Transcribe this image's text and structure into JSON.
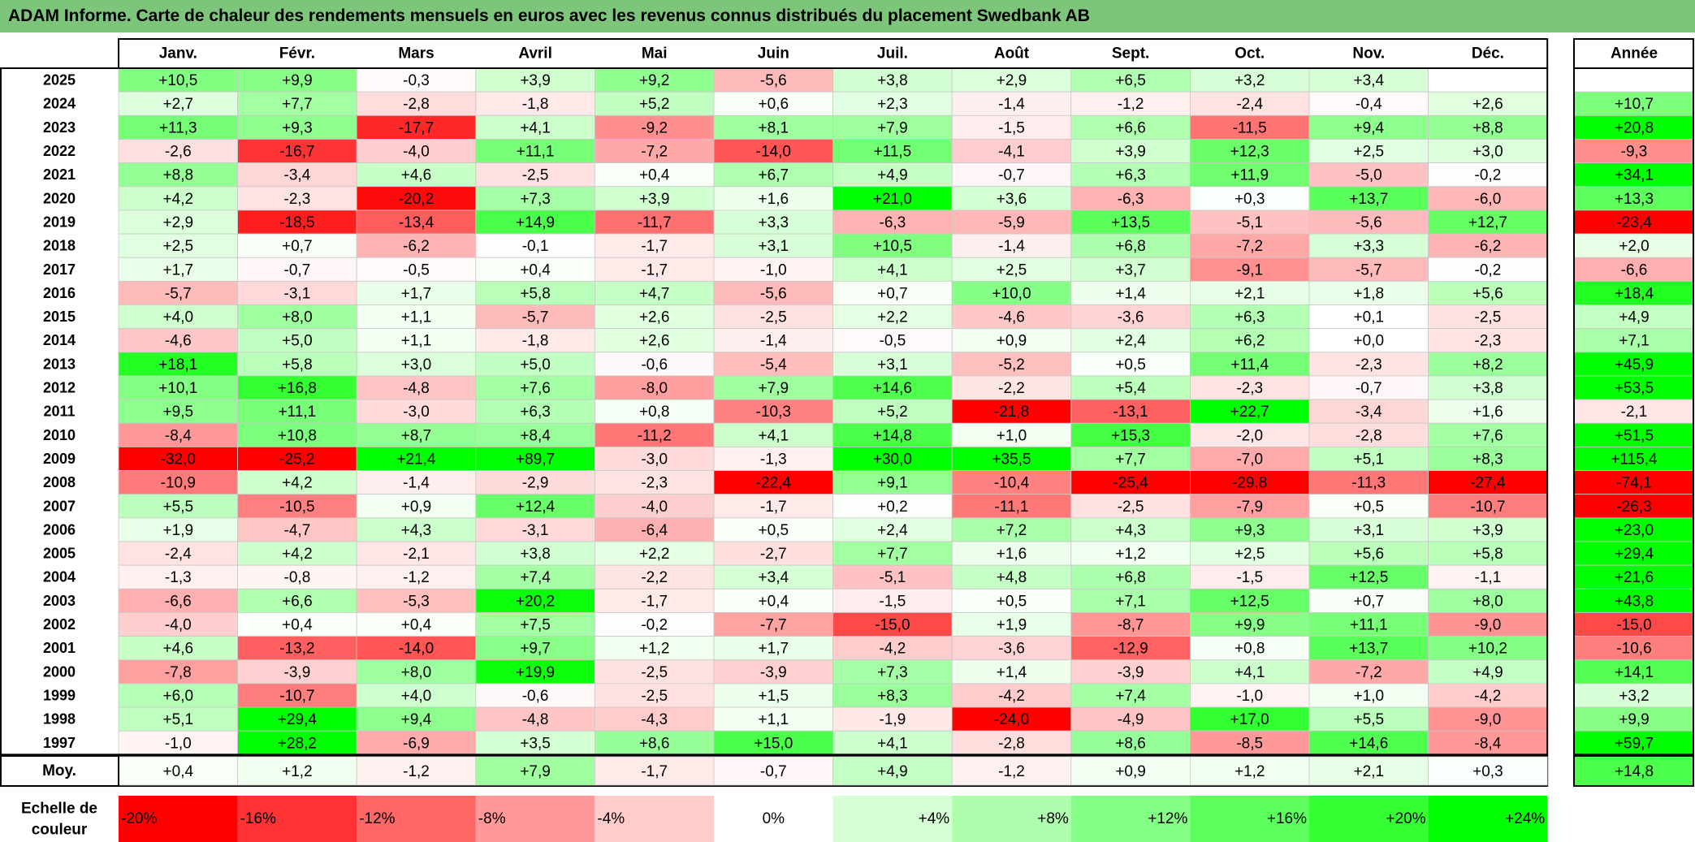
{
  "title": "ADAM Informe. Carte de chaleur des rendements mensuels en euros avec les revenus connus distribués du placement Swedbank AB",
  "chart_data": {
    "type": "heatmap",
    "title": "ADAM Informe. Carte de chaleur des rendements mensuels en euros avec les revenus connus distribués du placement Swedbank AB",
    "columns": [
      "Janv.",
      "Févr.",
      "Mars",
      "Avril",
      "Mai",
      "Juin",
      "Juil.",
      "Août",
      "Sept.",
      "Oct.",
      "Nov.",
      "Déc."
    ],
    "annual_header": "Année",
    "rows": [
      {
        "year": "2025",
        "values": [
          "+10,5",
          "+9,9",
          "-0,3",
          "+3,9",
          "+9,2",
          "-5,6",
          "+3,8",
          "+2,9",
          "+6,5",
          "+3,2",
          "+3,4",
          ""
        ],
        "annual": ""
      },
      {
        "year": "2024",
        "values": [
          "+2,7",
          "+7,7",
          "-2,8",
          "-1,8",
          "+5,2",
          "+0,6",
          "+2,3",
          "-1,4",
          "-1,2",
          "-2,4",
          "-0,4",
          "+2,6"
        ],
        "annual": "+10,7"
      },
      {
        "year": "2023",
        "values": [
          "+11,3",
          "+9,3",
          "-17,7",
          "+4,1",
          "-9,2",
          "+8,1",
          "+7,9",
          "-1,5",
          "+6,6",
          "-11,5",
          "+9,4",
          "+8,8"
        ],
        "annual": "+20,8"
      },
      {
        "year": "2022",
        "values": [
          "-2,6",
          "-16,7",
          "-4,0",
          "+11,1",
          "-7,2",
          "-14,0",
          "+11,5",
          "-4,1",
          "+3,9",
          "+12,3",
          "+2,5",
          "+3,0"
        ],
        "annual": "-9,3"
      },
      {
        "year": "2021",
        "values": [
          "+8,8",
          "-3,4",
          "+4,6",
          "-2,5",
          "+0,4",
          "+6,7",
          "+4,9",
          "-0,7",
          "+6,3",
          "+11,9",
          "-5,0",
          "-0,2"
        ],
        "annual": "+34,1"
      },
      {
        "year": "2020",
        "values": [
          "+4,2",
          "-2,3",
          "-20,2",
          "+7,3",
          "+3,9",
          "+1,6",
          "+21,0",
          "+3,6",
          "-6,3",
          "+0,3",
          "+13,7",
          "-6,0"
        ],
        "annual": "+13,3"
      },
      {
        "year": "2019",
        "values": [
          "+2,9",
          "-18,5",
          "-13,4",
          "+14,9",
          "-11,7",
          "+3,3",
          "-6,3",
          "-5,9",
          "+13,5",
          "-5,1",
          "-5,6",
          "+12,7"
        ],
        "annual": "-23,4"
      },
      {
        "year": "2018",
        "values": [
          "+2,5",
          "+0,7",
          "-6,2",
          "-0,1",
          "-1,7",
          "+3,1",
          "+10,5",
          "-1,4",
          "+6,8",
          "-7,2",
          "+3,3",
          "-6,2"
        ],
        "annual": "+2,0"
      },
      {
        "year": "2017",
        "values": [
          "+1,7",
          "-0,7",
          "-0,5",
          "+0,4",
          "-1,7",
          "-1,0",
          "+4,1",
          "+2,5",
          "+3,7",
          "-9,1",
          "-5,7",
          "-0,2"
        ],
        "annual": "-6,6"
      },
      {
        "year": "2016",
        "values": [
          "-5,7",
          "-3,1",
          "+1,7",
          "+5,8",
          "+4,7",
          "-5,6",
          "+0,7",
          "+10,0",
          "+1,4",
          "+2,1",
          "+1,8",
          "+5,6"
        ],
        "annual": "+18,4"
      },
      {
        "year": "2015",
        "values": [
          "+4,0",
          "+8,0",
          "+1,1",
          "-5,7",
          "+2,6",
          "-2,5",
          "+2,2",
          "-4,6",
          "-3,6",
          "+6,3",
          "+0,1",
          "-2,5"
        ],
        "annual": "+4,9"
      },
      {
        "year": "2014",
        "values": [
          "-4,6",
          "+5,0",
          "+1,1",
          "-1,8",
          "+2,6",
          "-1,4",
          "-0,5",
          "+0,9",
          "+2,4",
          "+6,2",
          "+0,0",
          "-2,3"
        ],
        "annual": "+7,1"
      },
      {
        "year": "2013",
        "values": [
          "+18,1",
          "+5,8",
          "+3,0",
          "+5,0",
          "-0,6",
          "-5,4",
          "+3,1",
          "-5,2",
          "+0,5",
          "+11,4",
          "-2,3",
          "+8,2"
        ],
        "annual": "+45,9"
      },
      {
        "year": "2012",
        "values": [
          "+10,1",
          "+16,8",
          "-4,8",
          "+7,6",
          "-8,0",
          "+7,9",
          "+14,6",
          "-2,2",
          "+5,4",
          "-2,3",
          "-0,7",
          "+3,8"
        ],
        "annual": "+53,5"
      },
      {
        "year": "2011",
        "values": [
          "+9,5",
          "+11,1",
          "-3,0",
          "+6,3",
          "+0,8",
          "-10,3",
          "+5,2",
          "-21,8",
          "-13,1",
          "+22,7",
          "-3,4",
          "+1,6"
        ],
        "annual": "-2,1"
      },
      {
        "year": "2010",
        "values": [
          "-8,4",
          "+10,8",
          "+8,7",
          "+8,4",
          "-11,2",
          "+4,1",
          "+14,8",
          "+1,0",
          "+15,3",
          "-2,0",
          "-2,8",
          "+7,6"
        ],
        "annual": "+51,5"
      },
      {
        "year": "2009",
        "values": [
          "-32,0",
          "-25,2",
          "+21,4",
          "+89,7",
          "-3,0",
          "-1,3",
          "+30,0",
          "+35,5",
          "+7,7",
          "-7,0",
          "+5,1",
          "+8,3"
        ],
        "annual": "+115,4"
      },
      {
        "year": "2008",
        "values": [
          "-10,9",
          "+4,2",
          "-1,4",
          "-2,9",
          "-2,3",
          "-22,4",
          "+9,1",
          "-10,4",
          "-25,4",
          "-29,8",
          "-11,3",
          "-27,4"
        ],
        "annual": "-74,1"
      },
      {
        "year": "2007",
        "values": [
          "+5,5",
          "-10,5",
          "+0,9",
          "+12,4",
          "-4,0",
          "-1,7",
          "+0,2",
          "-11,1",
          "-2,5",
          "-7,9",
          "+0,5",
          "-10,7"
        ],
        "annual": "-26,3"
      },
      {
        "year": "2006",
        "values": [
          "+1,9",
          "-4,7",
          "+4,3",
          "-3,1",
          "-6,4",
          "+0,5",
          "+2,4",
          "+7,2",
          "+4,3",
          "+9,3",
          "+3,1",
          "+3,9"
        ],
        "annual": "+23,0"
      },
      {
        "year": "2005",
        "values": [
          "-2,4",
          "+4,2",
          "-2,1",
          "+3,8",
          "+2,2",
          "-2,7",
          "+7,7",
          "+1,6",
          "+1,2",
          "+2,5",
          "+5,6",
          "+5,8"
        ],
        "annual": "+29,4"
      },
      {
        "year": "2004",
        "values": [
          "-1,3",
          "-0,8",
          "-1,2",
          "+7,4",
          "-2,2",
          "+3,4",
          "-5,1",
          "+4,8",
          "+6,8",
          "-1,5",
          "+12,5",
          "-1,1"
        ],
        "annual": "+21,6"
      },
      {
        "year": "2003",
        "values": [
          "-6,6",
          "+6,6",
          "-5,3",
          "+20,2",
          "-1,7",
          "+0,4",
          "-1,5",
          "+0,5",
          "+7,1",
          "+12,5",
          "+0,7",
          "+8,0"
        ],
        "annual": "+43,8"
      },
      {
        "year": "2002",
        "values": [
          "-4,0",
          "+0,4",
          "+0,4",
          "+7,5",
          "-0,2",
          "-7,7",
          "-15,0",
          "+1,9",
          "-8,7",
          "+9,9",
          "+11,1",
          "-9,0"
        ],
        "annual": "-15,0"
      },
      {
        "year": "2001",
        "values": [
          "+4,6",
          "-13,2",
          "-14,0",
          "+9,7",
          "+1,2",
          "+1,7",
          "-4,2",
          "-3,6",
          "-12,9",
          "+0,8",
          "+13,7",
          "+10,2"
        ],
        "annual": "-10,6"
      },
      {
        "year": "2000",
        "values": [
          "-7,8",
          "-3,9",
          "+8,0",
          "+19,9",
          "-2,5",
          "-3,9",
          "+7,3",
          "+1,4",
          "-3,9",
          "+4,1",
          "-7,2",
          "+4,9"
        ],
        "annual": "+14,1"
      },
      {
        "year": "1999",
        "values": [
          "+6,0",
          "-10,7",
          "+4,0",
          "-0,6",
          "-2,5",
          "+1,5",
          "+8,3",
          "-4,2",
          "+7,4",
          "-1,0",
          "+1,0",
          "-4,2"
        ],
        "annual": "+3,2"
      },
      {
        "year": "1998",
        "values": [
          "+5,1",
          "+29,4",
          "+9,4",
          "-4,8",
          "-4,3",
          "+1,1",
          "-1,9",
          "-24,0",
          "-4,9",
          "+17,0",
          "+5,5",
          "-9,0"
        ],
        "annual": "+9,9"
      },
      {
        "year": "1997",
        "values": [
          "-1,0",
          "+28,2",
          "-6,9",
          "+3,5",
          "+8,6",
          "+15,0",
          "+4,1",
          "-2,8",
          "+8,6",
          "-8,5",
          "+14,6",
          "-8,4"
        ],
        "annual": "+59,7"
      }
    ],
    "average": {
      "label": "Moy.",
      "values": [
        "+0,4",
        "+1,2",
        "-1,2",
        "+7,9",
        "-1,7",
        "-0,7",
        "+4,9",
        "-1,2",
        "+0,9",
        "+1,2",
        "+2,1",
        "+0,3"
      ],
      "annual": "+14,8"
    },
    "color_scale": {
      "label": "Echelle de couleur",
      "steps": [
        {
          "label": "-20%",
          "value": -20,
          "color": "#ff0000"
        },
        {
          "label": "-16%",
          "value": -16,
          "color": "#ff3333"
        },
        {
          "label": "-12%",
          "value": -12,
          "color": "#ff6666"
        },
        {
          "label": "-8%",
          "value": -8,
          "color": "#ff9999"
        },
        {
          "label": "-4%",
          "value": -4,
          "color": "#ffcccc"
        },
        {
          "label": "0%",
          "value": 0,
          "color": "#ffffff"
        },
        {
          "label": "+4%",
          "value": 4,
          "color": "#d6ffd6"
        },
        {
          "label": "+8%",
          "value": 8,
          "color": "#adffad"
        },
        {
          "label": "+12%",
          "value": 12,
          "color": "#85ff85"
        },
        {
          "label": "+16%",
          "value": 16,
          "color": "#5cff5c"
        },
        {
          "label": "+20%",
          "value": 20,
          "color": "#33ff33"
        },
        {
          "label": "+24%",
          "value": 24,
          "color": "#00ff00"
        }
      ]
    }
  }
}
